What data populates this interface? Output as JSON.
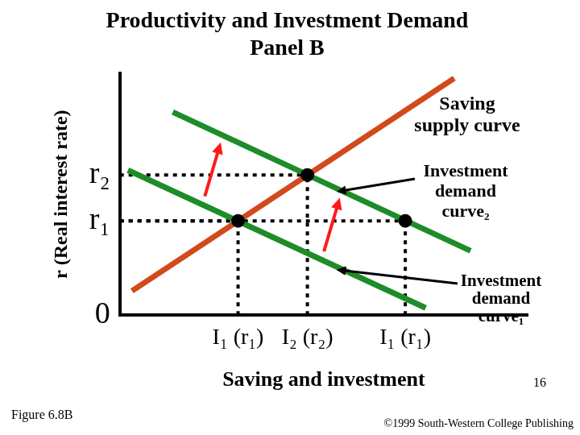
{
  "chart_data": {
    "type": "line",
    "title": "Productivity and Investment Demand",
    "subtitle": "Panel B",
    "x_label": "Saving and investment",
    "y_label": "r (Real interest rate)",
    "xlim": [
      0,
      100
    ],
    "ylim": [
      0,
      100
    ],
    "xticks": [
      {
        "value": 29,
        "label": "I₁ (r₁)"
      },
      {
        "value": 46,
        "label": "I₂ (r₂)"
      },
      {
        "value": 70,
        "label": "I₁ (r₁)"
      }
    ],
    "yticks": [
      0,
      {
        "value": 39,
        "label": "r₁"
      },
      {
        "value": 58,
        "label": "r₂"
      }
    ],
    "grid": false,
    "series": [
      {
        "name": "Saving supply curve",
        "color": "#d2491c",
        "x": [
          3,
          82
        ],
        "values": [
          10,
          98
        ]
      },
      {
        "name": "Investment demand curve₂",
        "color": "#1e8c28",
        "x": [
          13,
          86
        ],
        "values": [
          84,
          26.6
        ]
      },
      {
        "name": "Investment demand curve₁",
        "color": "#1e8c28",
        "x": [
          2,
          75
        ],
        "values": [
          60,
          3
        ]
      }
    ],
    "equilibrium": {
      "x": [
        29,
        46,
        70
      ],
      "values": [
        39,
        58,
        39
      ],
      "color": "#000000",
      "marker": "circle",
      "line_style": "dotted"
    },
    "annotations": [
      "Figure 6.8B",
      "16",
      "©1999 South-Western College Publishing"
    ]
  }
}
